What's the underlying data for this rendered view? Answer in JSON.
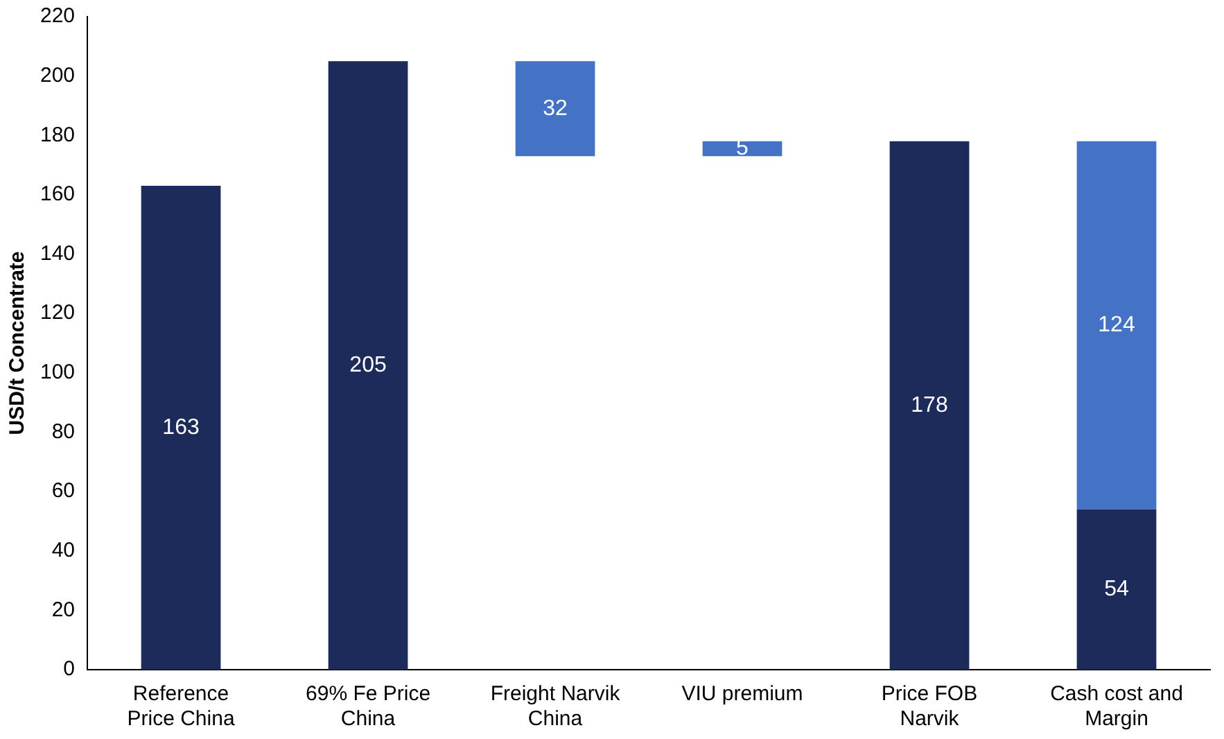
{
  "chart_data": {
    "type": "bar",
    "ylabel": "USD/t Concentrate",
    "categories": [
      "Reference Price China",
      "69% Fe Price China",
      "Freight Narvik China",
      "VIU premium",
      "Price FOB Narvik",
      "Cash cost and Margin"
    ],
    "series": [
      {
        "color": "#1c2b5a",
        "values": [
          163,
          205,
          null,
          null,
          178,
          54
        ]
      },
      {
        "color": "#4472c4",
        "values": [
          null,
          null,
          32,
          5,
          null,
          124
        ],
        "base": [
          null,
          null,
          173,
          173,
          null,
          null
        ]
      }
    ],
    "stacked": true,
    "ylim": [
      0,
      220
    ],
    "yticks": [
      0,
      20,
      40,
      60,
      80,
      100,
      120,
      140,
      160,
      180,
      200,
      220
    ],
    "grid": false,
    "legend": false,
    "data_labels": true
  }
}
